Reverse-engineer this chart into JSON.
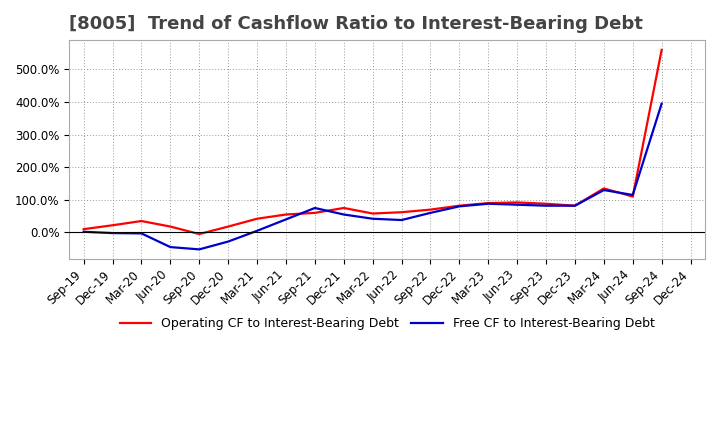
{
  "title": "[8005]  Trend of Cashflow Ratio to Interest-Bearing Debt",
  "x_labels": [
    "Sep-19",
    "Dec-19",
    "Mar-20",
    "Jun-20",
    "Sep-20",
    "Dec-20",
    "Mar-21",
    "Jun-21",
    "Sep-21",
    "Dec-21",
    "Mar-22",
    "Jun-22",
    "Sep-22",
    "Dec-22",
    "Mar-23",
    "Jun-23",
    "Sep-23",
    "Dec-23",
    "Mar-24",
    "Jun-24",
    "Sep-24",
    "Dec-24"
  ],
  "operating_cf": [
    10.0,
    22.0,
    35.0,
    18.0,
    -5.0,
    18.0,
    42.0,
    55.0,
    60.0,
    75.0,
    58.0,
    62.0,
    70.0,
    82.0,
    90.0,
    92.0,
    88.0,
    82.0,
    135.0,
    110.0,
    560.0,
    null
  ],
  "free_cf": [
    2.0,
    -2.0,
    -3.0,
    -45.0,
    -52.0,
    -28.0,
    5.0,
    40.0,
    75.0,
    55.0,
    42.0,
    38.0,
    60.0,
    80.0,
    88.0,
    85.0,
    82.0,
    82.0,
    130.0,
    115.0,
    395.0,
    null
  ],
  "operating_color": "#ff0000",
  "free_color": "#0000cc",
  "background_color": "#ffffff",
  "grid_color": "#999999",
  "ylim_min": -80,
  "ylim_max": 590,
  "yticks": [
    0,
    100,
    200,
    300,
    400,
    500
  ],
  "ytick_labels": [
    "0.0%",
    "100.0%",
    "200.0%",
    "300.0%",
    "400.0%",
    "500.0%"
  ],
  "legend_operating": "Operating CF to Interest-Bearing Debt",
  "legend_free": "Free CF to Interest-Bearing Debt",
  "title_fontsize": 13,
  "tick_fontsize": 8.5,
  "legend_fontsize": 9
}
